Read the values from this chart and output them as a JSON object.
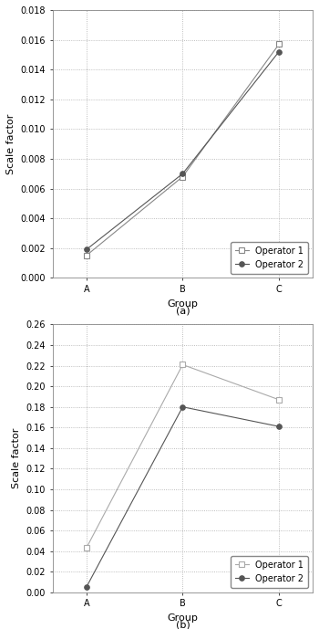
{
  "chart_a": {
    "groups": [
      "A",
      "B",
      "C"
    ],
    "op1_values": [
      0.0015,
      0.0068,
      0.0157
    ],
    "op2_values": [
      0.0019,
      0.007,
      0.0152
    ],
    "ylabel": "Scale factor",
    "xlabel": "Group",
    "subtitle": "(a)",
    "ylim": [
      0.0,
      0.018
    ],
    "yticks": [
      0.0,
      0.002,
      0.004,
      0.006,
      0.008,
      0.01,
      0.012,
      0.014,
      0.016,
      0.018
    ],
    "op1_color": "#888888",
    "op2_color": "#555555",
    "op1_marker": "s",
    "op2_marker": "o",
    "op1_markersize": 4,
    "op2_markersize": 4,
    "op1_label": "Operator 1",
    "op2_label": "Operator 2"
  },
  "chart_b": {
    "groups": [
      "A",
      "B",
      "C"
    ],
    "op1_values": [
      0.043,
      0.221,
      0.187
    ],
    "op2_values": [
      0.005,
      0.18,
      0.161
    ],
    "ylabel": "Scale factor",
    "xlabel": "Group",
    "subtitle": "(b)",
    "ylim": [
      0.0,
      0.26
    ],
    "yticks": [
      0.0,
      0.02,
      0.04,
      0.06,
      0.08,
      0.1,
      0.12,
      0.14,
      0.16,
      0.18,
      0.2,
      0.22,
      0.24,
      0.26
    ],
    "op1_color": "#aaaaaa",
    "op2_color": "#555555",
    "op1_marker": "s",
    "op2_marker": "o",
    "op1_markersize": 4,
    "op2_markersize": 4,
    "op1_label": "Operator 1",
    "op2_label": "Operator 2"
  },
  "background_color": "#ffffff",
  "grid_color": "#aaaaaa",
  "legend_fontsize": 7,
  "axis_label_fontsize": 8,
  "tick_fontsize": 7,
  "subtitle_fontsize": 8
}
